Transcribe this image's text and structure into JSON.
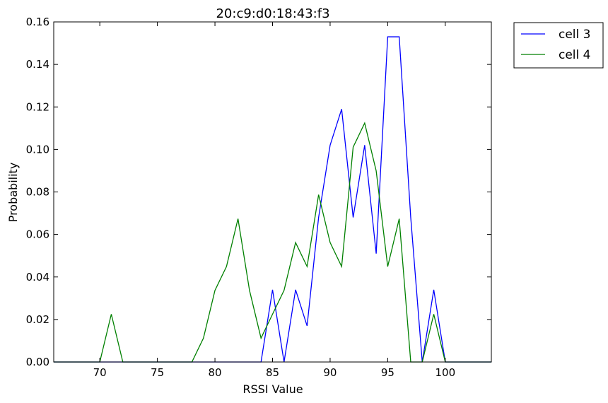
{
  "chart_data": {
    "type": "line",
    "title": "20:c9:d0:18:43:f3",
    "xlabel": "RSSI Value",
    "ylabel": "Probability",
    "xlim": [
      66,
      104
    ],
    "ylim": [
      0,
      0.16
    ],
    "xticks": [
      70,
      75,
      80,
      85,
      90,
      95,
      100
    ],
    "yticks": [
      0.0,
      0.02,
      0.04,
      0.06,
      0.08,
      0.1,
      0.12,
      0.14,
      0.16
    ],
    "ytick_labels": [
      "0.00",
      "0.02",
      "0.04",
      "0.06",
      "0.08",
      "0.10",
      "0.12",
      "0.14",
      "0.16"
    ],
    "grid": false,
    "legend_position": "outside-top-right",
    "series": [
      {
        "name": "cell 3",
        "color": "#0000ff",
        "x": [
          66,
          67,
          68,
          69,
          70,
          71,
          72,
          73,
          74,
          75,
          76,
          77,
          78,
          79,
          80,
          81,
          82,
          83,
          84,
          85,
          86,
          87,
          88,
          89,
          90,
          91,
          92,
          93,
          94,
          95,
          96,
          97,
          98,
          99,
          100,
          101,
          102,
          103,
          104
        ],
        "y": [
          0,
          0,
          0,
          0,
          0,
          0,
          0,
          0,
          0,
          0,
          0,
          0,
          0,
          0,
          0,
          0,
          0,
          0,
          0,
          0.034,
          0,
          0.034,
          0.017,
          0.068,
          0.102,
          0.119,
          0.068,
          0.102,
          0.051,
          0.153,
          0.153,
          0.068,
          0,
          0.034,
          0,
          0,
          0,
          0,
          0
        ]
      },
      {
        "name": "cell 4",
        "color": "#008000",
        "x": [
          66,
          67,
          68,
          69,
          70,
          71,
          72,
          73,
          74,
          75,
          76,
          77,
          78,
          79,
          80,
          81,
          82,
          83,
          84,
          85,
          86,
          87,
          88,
          89,
          90,
          91,
          92,
          93,
          94,
          95,
          96,
          97,
          98,
          99,
          100,
          101,
          102,
          103,
          104
        ],
        "y": [
          0,
          0,
          0,
          0,
          0,
          0.0225,
          0,
          0,
          0,
          0,
          0,
          0,
          0,
          0.0112,
          0.0337,
          0.0449,
          0.0674,
          0.0337,
          0.0112,
          0.0225,
          0.0337,
          0.0562,
          0.0449,
          0.0787,
          0.0562,
          0.0449,
          0.1011,
          0.1124,
          0.0899,
          0.0449,
          0.0674,
          0,
          0,
          0.0225,
          0,
          0,
          0,
          0,
          0
        ]
      }
    ]
  }
}
